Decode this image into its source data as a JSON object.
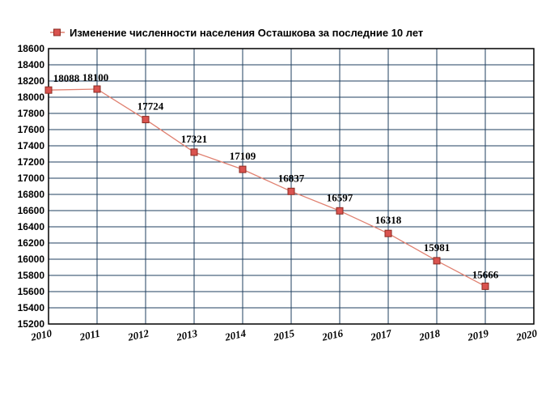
{
  "chart_data": {
    "type": "line",
    "title": "",
    "xlabel": "",
    "ylabel": "",
    "xlim": [
      2010,
      2020
    ],
    "ylim": [
      15200,
      18600
    ],
    "x_ticks": [
      2010,
      2011,
      2012,
      2013,
      2014,
      2015,
      2016,
      2017,
      2018,
      2019,
      2020
    ],
    "y_ticks": [
      15200,
      15400,
      15600,
      15800,
      16000,
      16200,
      16400,
      16600,
      16800,
      17000,
      17200,
      17400,
      17600,
      17800,
      18000,
      18200,
      18400,
      18600
    ],
    "grid": true,
    "legend_position": "top",
    "series": [
      {
        "name": "Изменение численности населения Осташкова за последние 10 лет",
        "color": "#e08070",
        "marker_color": "#d9534f",
        "x": [
          2010,
          2011,
          2012,
          2013,
          2014,
          2015,
          2016,
          2017,
          2018,
          2019
        ],
        "values": [
          18088,
          18100,
          17724,
          17321,
          17109,
          16837,
          16597,
          16318,
          15981,
          15666
        ],
        "labels": [
          "18088",
          "18100",
          "17724",
          "17321",
          "17109",
          "16837",
          "16597",
          "16318",
          "15981",
          "15666"
        ]
      }
    ],
    "colors": {
      "grid": "#1f3f5f",
      "plot_border": "#000000"
    }
  }
}
